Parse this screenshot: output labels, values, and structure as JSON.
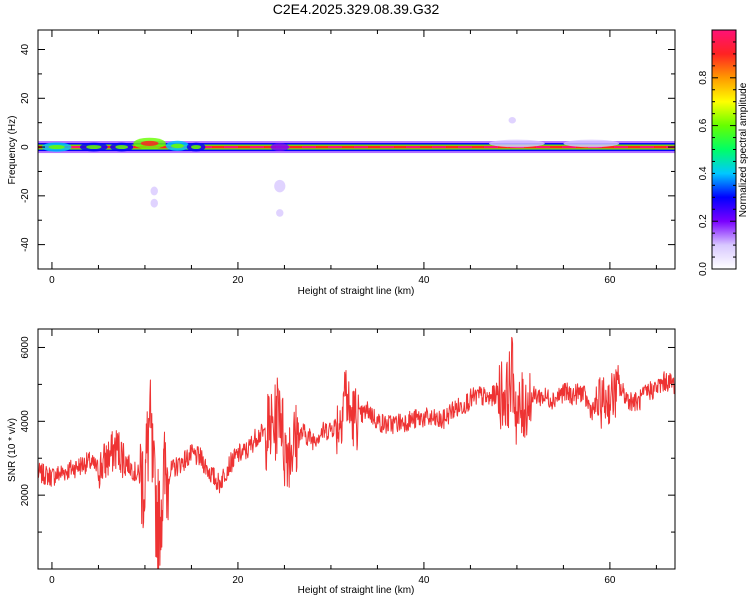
{
  "title": "C2E4.2025.329.08.39.G32",
  "chart_data": [
    {
      "type": "heatmap",
      "xlabel": "Height of straight line (km)",
      "ylabel": "Frequency (Hz)",
      "xlim": [
        -1.5,
        67
      ],
      "ylim": [
        -50,
        48
      ],
      "xticks": [
        0,
        20,
        40,
        60
      ],
      "yticks": [
        -40,
        -20,
        0,
        20,
        40
      ],
      "colorbar": {
        "label": "Normalized spectral amplitude",
        "range": [
          0,
          1
        ],
        "ticks": [
          0.0,
          0.2,
          0.4,
          0.6,
          0.8
        ],
        "tick_labels": [
          "0.0",
          "0.2",
          "0.4",
          "0.6",
          "0.8"
        ],
        "colors": [
          "#ffffff",
          "#d8c8ff",
          "#7a00ff",
          "#0000ff",
          "#00c8ff",
          "#00ff66",
          "#66ff00",
          "#ffff00",
          "#ff9900",
          "#ff2222",
          "#ff1177"
        ]
      },
      "band_center_hz": 0,
      "blobs": [
        {
          "x": 0.5,
          "y": 0,
          "w": 3.2,
          "h": 2.2,
          "value": 0.35
        },
        {
          "x": 4.5,
          "y": 0,
          "w": 3.0,
          "h": 2.0,
          "value": 0.3
        },
        {
          "x": 7.5,
          "y": 0,
          "w": 2.5,
          "h": 2.0,
          "value": 0.3
        },
        {
          "x": 10.5,
          "y": 1.5,
          "w": 3.5,
          "h": 3.0,
          "value": 0.6
        },
        {
          "x": 13.5,
          "y": 0.5,
          "w": 2.5,
          "h": 2.5,
          "value": 0.35
        },
        {
          "x": 15.5,
          "y": 0,
          "w": 2.0,
          "h": 2.0,
          "value": 0.3
        },
        {
          "x": 24.5,
          "y": 0,
          "w": 2.0,
          "h": 1.5,
          "value": 0.2
        },
        {
          "x": 11,
          "y": -18,
          "w": 0.8,
          "h": 2.0,
          "value": 0.1
        },
        {
          "x": 11,
          "y": -23,
          "w": 0.8,
          "h": 2.0,
          "value": 0.1
        },
        {
          "x": 24.5,
          "y": -16,
          "w": 1.2,
          "h": 3.5,
          "value": 0.12
        },
        {
          "x": 24.5,
          "y": -27,
          "w": 0.8,
          "h": 1.5,
          "value": 0.08
        },
        {
          "x": 49.5,
          "y": 11,
          "w": 0.8,
          "h": 1.0,
          "value": 0.08
        },
        {
          "x": 50,
          "y": 1.5,
          "w": 6,
          "h": 1.5,
          "value": 0.12
        },
        {
          "x": 58,
          "y": 1.5,
          "w": 6,
          "h": 1.5,
          "value": 0.12
        }
      ]
    },
    {
      "type": "line",
      "xlabel": "Height of straight line (km)",
      "ylabel": "SNR (10 * v/v)",
      "xlim": [
        -1.5,
        67
      ],
      "ylim": [
        0,
        6500
      ],
      "xticks": [
        0,
        20,
        40,
        60
      ],
      "yticks": [
        2000,
        4000,
        6000
      ],
      "series": [
        {
          "color": "#ee3333",
          "x": [
            -1.5,
            0,
            2,
            4,
            5,
            6,
            7,
            8,
            9,
            10,
            10.5,
            11,
            11.5,
            12,
            13,
            14,
            15,
            16,
            17,
            18,
            19,
            20,
            21,
            22,
            23,
            24,
            24.5,
            25,
            26,
            27,
            28,
            29,
            30,
            31,
            31.5,
            32,
            33,
            34,
            35,
            36,
            38,
            40,
            42,
            43,
            44,
            45,
            46,
            47,
            48,
            49,
            49.5,
            50,
            51,
            52,
            54,
            55,
            56,
            57,
            58,
            59,
            60,
            61,
            62,
            63,
            64,
            65,
            66,
            67
          ],
          "y": [
            2600,
            2500,
            2700,
            2900,
            2700,
            3000,
            3300,
            2900,
            2600,
            2400,
            4000,
            2000,
            1200,
            2400,
            2700,
            2900,
            3100,
            3000,
            2600,
            2300,
            2800,
            3100,
            3200,
            3600,
            3700,
            3900,
            4600,
            3200,
            3400,
            3700,
            3500,
            3700,
            3800,
            4000,
            5000,
            4200,
            4100,
            4300,
            4000,
            3900,
            4000,
            4100,
            4000,
            4300,
            4400,
            4600,
            4700,
            4600,
            4800,
            4700,
            5400,
            4100,
            4500,
            4700,
            4600,
            4800,
            4700,
            4800,
            4300,
            4500,
            4600,
            4900,
            4600,
            4500,
            4800,
            4900,
            5100,
            5000
          ]
        }
      ]
    }
  ]
}
